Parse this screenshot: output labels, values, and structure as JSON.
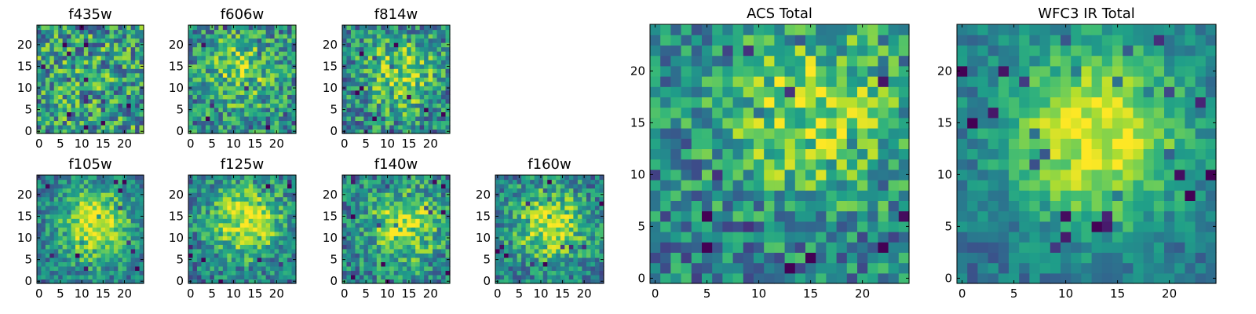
{
  "colormap": "viridis",
  "chart_data": [
    {
      "type": "heatmap",
      "title": "f435w",
      "xticks": [
        "0",
        "5",
        "10",
        "15",
        "20"
      ],
      "yticks": [
        "0",
        "5",
        "10",
        "15",
        "20"
      ],
      "xlim": [
        -0.5,
        24.5
      ],
      "ylim": [
        -0.5,
        24.5
      ],
      "grid": false,
      "peak": [
        12,
        12
      ],
      "blob": 0.05,
      "noise": 0.35
    },
    {
      "type": "heatmap",
      "title": "f606w",
      "xticks": [
        "0",
        "5",
        "10",
        "15",
        "20"
      ],
      "yticks": [
        "0",
        "5",
        "10",
        "15",
        "20"
      ],
      "xlim": [
        -0.5,
        24.5
      ],
      "ylim": [
        -0.5,
        24.5
      ],
      "grid": false,
      "peak": [
        12,
        14
      ],
      "blob": 0.3,
      "noise": 0.3
    },
    {
      "type": "heatmap",
      "title": "f814w",
      "xticks": [
        "0",
        "5",
        "10",
        "15",
        "20"
      ],
      "yticks": [
        "0",
        "5",
        "10",
        "15",
        "20"
      ],
      "xlim": [
        -0.5,
        24.5
      ],
      "ylim": [
        -0.5,
        24.5
      ],
      "grid": false,
      "peak": [
        13,
        13
      ],
      "blob": 0.4,
      "noise": 0.3
    },
    {
      "type": "heatmap",
      "title": "f105w",
      "xticks": [
        "0",
        "5",
        "10",
        "15",
        "20"
      ],
      "yticks": [
        "0",
        "5",
        "10",
        "15",
        "20"
      ],
      "xlim": [
        -0.5,
        24.5
      ],
      "ylim": [
        -0.5,
        24.5
      ],
      "grid": false,
      "peak": [
        13,
        13
      ],
      "blob": 0.55,
      "noise": 0.22
    },
    {
      "type": "heatmap",
      "title": "f125w",
      "xticks": [
        "0",
        "5",
        "10",
        "15",
        "20"
      ],
      "yticks": [
        "0",
        "5",
        "10",
        "15",
        "20"
      ],
      "xlim": [
        -0.5,
        24.5
      ],
      "ylim": [
        -0.5,
        24.5
      ],
      "grid": false,
      "peak": [
        13,
        14
      ],
      "blob": 0.5,
      "noise": 0.25
    },
    {
      "type": "heatmap",
      "title": "f140w",
      "xticks": [
        "0",
        "5",
        "10",
        "15",
        "20"
      ],
      "yticks": [
        "0",
        "5",
        "10",
        "15",
        "20"
      ],
      "xlim": [
        -0.5,
        24.5
      ],
      "ylim": [
        -0.5,
        24.5
      ],
      "grid": false,
      "peak": [
        14,
        13
      ],
      "blob": 0.45,
      "noise": 0.27
    },
    {
      "type": "heatmap",
      "title": "f160w",
      "xticks": [
        "0",
        "5",
        "10",
        "15",
        "20"
      ],
      "yticks": [
        "0",
        "5",
        "10",
        "15",
        "20"
      ],
      "xlim": [
        -0.5,
        24.5
      ],
      "ylim": [
        -0.5,
        24.5
      ],
      "grid": false,
      "peak": [
        12,
        13
      ],
      "blob": 0.5,
      "noise": 0.25
    },
    {
      "type": "heatmap",
      "title": "ACS Total",
      "xticks": [
        "0",
        "5",
        "10",
        "15",
        "20"
      ],
      "yticks": [
        "0",
        "5",
        "10",
        "15",
        "20"
      ],
      "xlim": [
        -0.5,
        24.5
      ],
      "ylim": [
        -0.5,
        24.5
      ],
      "grid": false,
      "peak": [
        15,
        16
      ],
      "blob": 0.4,
      "noise": 0.28
    },
    {
      "type": "heatmap",
      "title": "WFC3 IR Total",
      "xticks": [
        "0",
        "5",
        "10",
        "15",
        "20"
      ],
      "yticks": [
        "0",
        "5",
        "10",
        "15",
        "20"
      ],
      "xlim": [
        -0.5,
        24.5
      ],
      "ylim": [
        -0.5,
        24.5
      ],
      "grid": false,
      "peak": [
        13,
        14
      ],
      "blob": 0.6,
      "noise": 0.15
    }
  ]
}
